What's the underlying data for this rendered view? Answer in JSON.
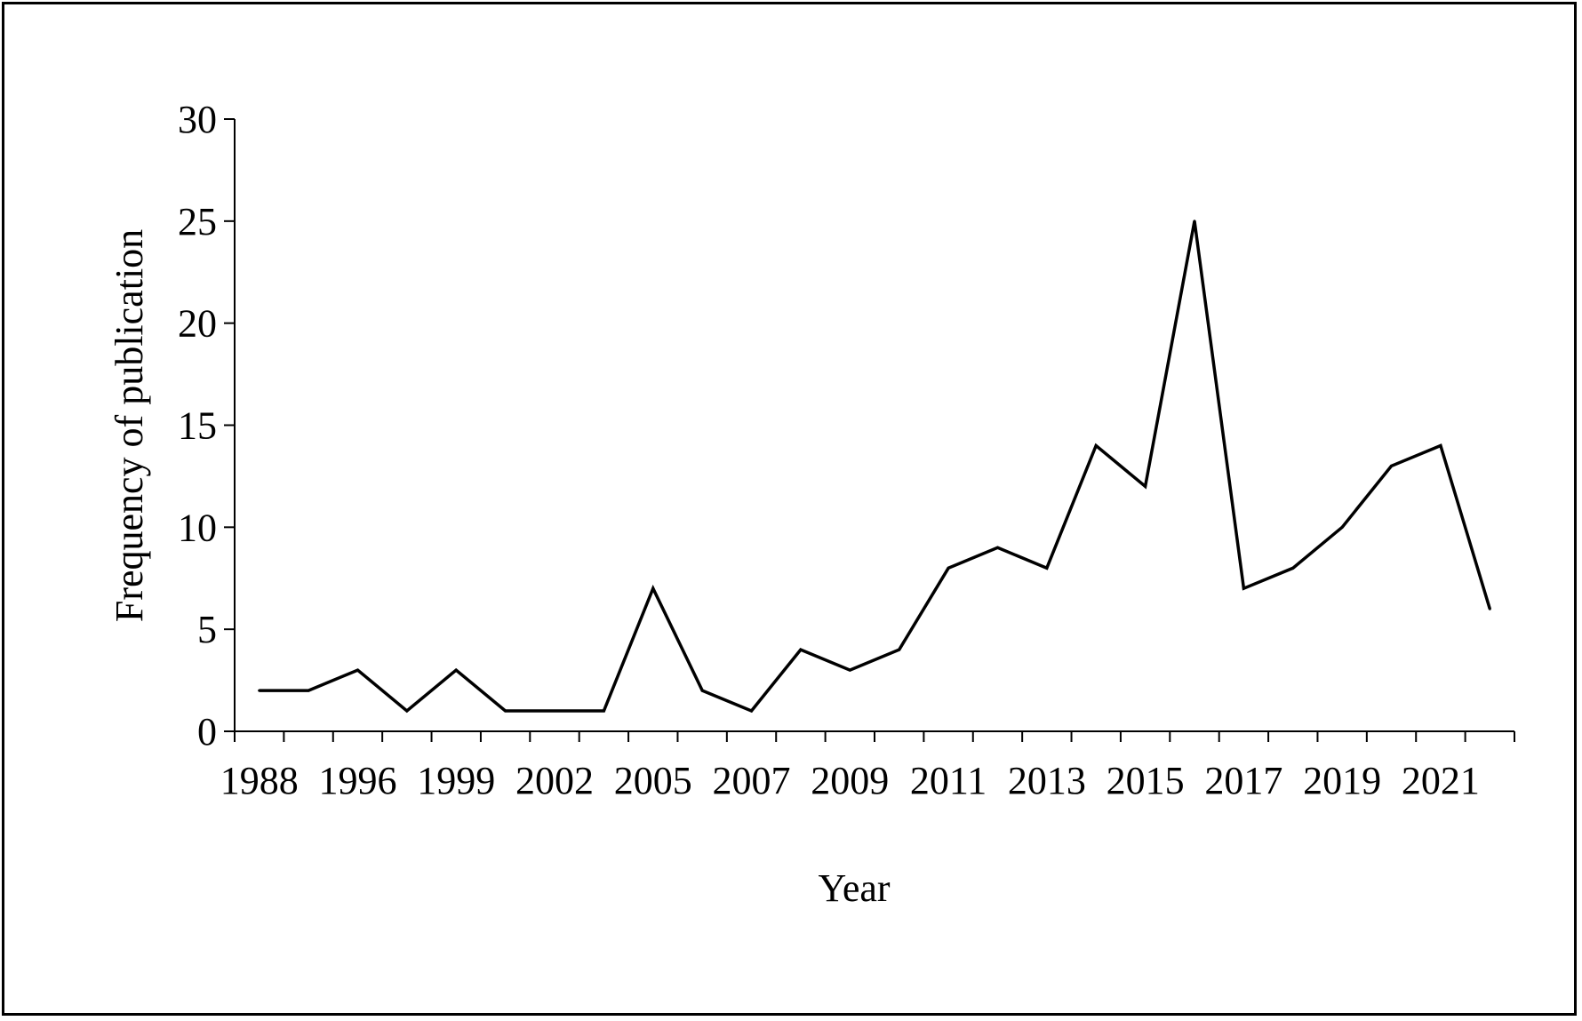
{
  "chart_data": {
    "type": "line",
    "title": "",
    "xlabel": "Year",
    "ylabel": "Frequency of publication",
    "x_tick_labels": [
      "1988",
      "1996",
      "1999",
      "2002",
      "2005",
      "2007",
      "2009",
      "2011",
      "2013",
      "2015",
      "2017",
      "2019",
      "2021"
    ],
    "y_ticks": [
      0,
      5,
      10,
      15,
      20,
      25,
      30
    ],
    "ylim": [
      0,
      30
    ],
    "grid": false,
    "legend": "none",
    "series": [
      {
        "values": [
          2,
          2,
          3,
          1,
          3,
          1,
          1,
          1,
          7,
          2,
          1,
          4,
          3,
          4,
          8,
          9,
          8,
          14,
          12,
          25,
          7,
          8,
          10,
          13,
          14,
          6
        ],
        "color": "#000000"
      }
    ]
  }
}
